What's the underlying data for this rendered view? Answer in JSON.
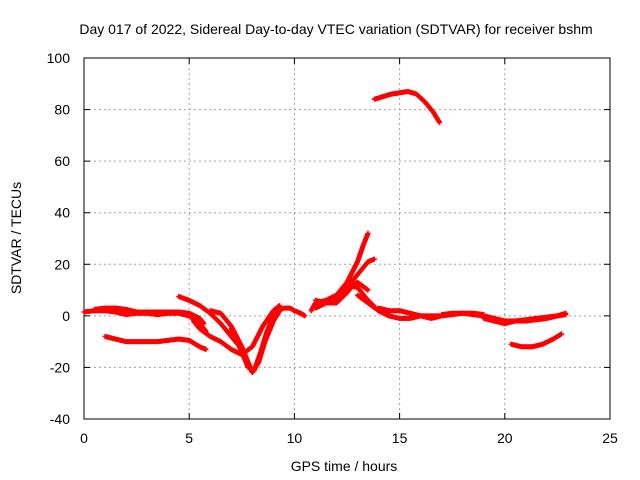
{
  "chart_data": {
    "type": "scatter",
    "title": "Day 017 of 2022, Sidereal Day-to-day VTEC variation (SDTVAR) for receiver bshm",
    "xlabel": "GPS time / hours",
    "ylabel": "SDTVAR / TECUs",
    "xlim": [
      0,
      25
    ],
    "ylim": [
      -40,
      100
    ],
    "xticks": [
      "0",
      "5",
      "10",
      "15",
      "20",
      "25"
    ],
    "yticks": [
      "-40",
      "-20",
      "0",
      "20",
      "40",
      "60",
      "80",
      "100"
    ],
    "grid": true,
    "legend": "none",
    "marker_color": "#ff0000",
    "series": [
      {
        "name": "s1",
        "x": [
          0,
          0.5,
          1,
          1.5,
          2,
          2.5,
          3,
          3.5,
          4,
          4.5,
          5,
          5.5,
          5.8
        ],
        "y": [
          1.5,
          2,
          2,
          1.5,
          0.5,
          1,
          1,
          0.5,
          1,
          1,
          0,
          -3,
          -6
        ]
      },
      {
        "name": "s2",
        "x": [
          0.5,
          1,
          1.5,
          2,
          2.5,
          3,
          3.5,
          4,
          4.5,
          5,
          5.5,
          5.7
        ],
        "y": [
          2.5,
          3,
          3,
          2.5,
          1.5,
          1.5,
          1.5,
          1.5,
          1.5,
          1,
          -1,
          -3
        ]
      },
      {
        "name": "s3",
        "x": [
          1,
          1.5,
          2,
          2.5,
          3,
          3.5,
          4,
          4.5,
          5,
          5.5,
          5.8
        ],
        "y": [
          -8,
          -9,
          -10,
          -10,
          -10,
          -10,
          -9.5,
          -9,
          -9.5,
          -12,
          -13
        ]
      },
      {
        "name": "s4",
        "x": [
          4.5,
          5,
          5.5,
          6,
          6.5,
          7,
          7.3
        ],
        "y": [
          7.5,
          6,
          4,
          1,
          -3,
          -8,
          -11
        ]
      },
      {
        "name": "s5",
        "x": [
          5.2,
          5.5,
          6,
          6.5,
          7,
          7.5,
          8,
          8.5,
          9,
          9.3
        ],
        "y": [
          -2,
          -5,
          -8,
          -10,
          -13,
          -15,
          -12,
          -4,
          2,
          4
        ]
      },
      {
        "name": "s6",
        "x": [
          6,
          6.5,
          7,
          7.5,
          7.8,
          8,
          8.3,
          8.6,
          9,
          9.3
        ],
        "y": [
          2,
          1,
          -4,
          -12,
          -18,
          -22,
          -18,
          -10,
          -2,
          2
        ]
      },
      {
        "name": "s7",
        "x": [
          7,
          7.5,
          7.8,
          8.1,
          8.4,
          8.7,
          9,
          9.2
        ],
        "y": [
          -5,
          -14,
          -20,
          -21,
          -14,
          -6,
          0,
          3
        ]
      },
      {
        "name": "s8",
        "x": [
          9.2,
          9.5,
          9.8,
          10,
          10.3,
          10.5
        ],
        "y": [
          2,
          3,
          3,
          2,
          1,
          0
        ]
      },
      {
        "name": "s9",
        "x": [
          10.8,
          11,
          11.5,
          12,
          12.5,
          13,
          13.3,
          13.5
        ],
        "y": [
          2,
          5,
          6,
          8,
          13,
          21,
          28,
          32
        ]
      },
      {
        "name": "s10",
        "x": [
          11,
          11.5,
          12,
          12.5,
          13,
          13.5,
          13.8
        ],
        "y": [
          3,
          5,
          7,
          11,
          16,
          21,
          22
        ]
      },
      {
        "name": "s11",
        "x": [
          11,
          11.5,
          12,
          12.5,
          12.8,
          13,
          13.5
        ],
        "y": [
          6,
          5,
          5,
          9,
          12,
          13,
          10
        ]
      },
      {
        "name": "s12",
        "x": [
          12.5,
          13,
          13.5,
          14,
          14.5
        ],
        "y": [
          12,
          11,
          6,
          2,
          0
        ]
      },
      {
        "name": "s13",
        "x": [
          13,
          13.5,
          14,
          14.5,
          15,
          15.5,
          16,
          16.5,
          17,
          17.5,
          18,
          18.5,
          19
        ],
        "y": [
          8,
          5,
          2,
          0,
          -1,
          -1,
          0,
          -1,
          0,
          0.5,
          1,
          1,
          0.5
        ]
      },
      {
        "name": "s14",
        "x": [
          14,
          14.5,
          15,
          15.5,
          16,
          16.5,
          17
        ],
        "y": [
          3,
          2,
          2,
          1,
          0,
          0,
          0
        ]
      },
      {
        "name": "s15",
        "x": [
          13.8,
          14.2,
          14.6,
          15,
          15.4,
          15.8,
          16.2,
          16.6,
          16.9
        ],
        "y": [
          84,
          85,
          86,
          86.5,
          87,
          86,
          83,
          79,
          75
        ]
      },
      {
        "name": "s16",
        "x": [
          17,
          17.5,
          18,
          18.5,
          19,
          19.5,
          20,
          20.5,
          21,
          21.5,
          22,
          22.5,
          22.9
        ],
        "y": [
          0.5,
          1,
          1,
          0.5,
          0,
          -1,
          -2,
          -2,
          -1.5,
          -1,
          -0.5,
          0,
          0.5
        ]
      },
      {
        "name": "s17",
        "x": [
          19,
          19.5,
          20,
          20.5,
          21,
          21.5,
          22,
          22.5,
          22.9
        ],
        "y": [
          -1,
          -2,
          -3,
          -2,
          -2,
          -1.5,
          -1,
          0,
          1
        ]
      },
      {
        "name": "s18",
        "x": [
          20.3,
          20.8,
          21.3,
          21.8,
          22.3,
          22.7
        ],
        "y": [
          -11,
          -12,
          -12,
          -11,
          -9,
          -7
        ]
      }
    ]
  }
}
